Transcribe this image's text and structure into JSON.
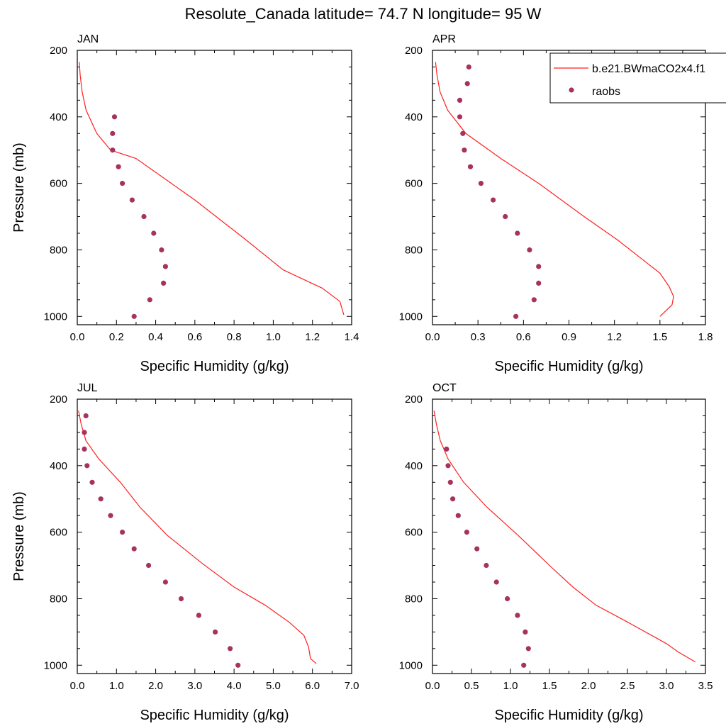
{
  "figure_title": "Resolute_Canada  latitude= 74.7 N longitude= 95 W",
  "colors": {
    "model_line": "#ff2020",
    "raobs_marker": "#a8325e",
    "axis": "#000000"
  },
  "legend": {
    "position": "top-right",
    "entries": [
      {
        "label": "b.e21.BWmaCO2x4.f1",
        "style": "line",
        "color": "#ff2020"
      },
      {
        "label": "raobs",
        "style": "marker",
        "color": "#a8325e"
      }
    ]
  },
  "chart_data": [
    {
      "type": "line",
      "panel": "JAN",
      "xlabel": "Specific Humidity (g/kg)",
      "ylabel": "Pressure (mb)",
      "xlim": [
        0,
        1.4
      ],
      "ylim": [
        1025,
        200
      ],
      "y_inverted": true,
      "xticks": [
        "0.0",
        "0.2",
        "0.4",
        "0.6",
        "0.8",
        "1.0",
        "1.2",
        "1.4"
      ],
      "yticks": [
        "200",
        "400",
        "600",
        "800",
        "1000"
      ],
      "series": [
        {
          "name": "b.e21.BWmaCO2x4.f1",
          "style": "line",
          "points": [
            [
              0.01,
              235
            ],
            [
              0.015,
              275
            ],
            [
              0.025,
              325
            ],
            [
              0.045,
              380
            ],
            [
              0.1,
              450
            ],
            [
              0.17,
              500
            ],
            [
              0.3,
              525
            ],
            [
              0.6,
              650
            ],
            [
              0.85,
              765
            ],
            [
              1.05,
              860
            ],
            [
              1.25,
              915
            ],
            [
              1.34,
              955
            ],
            [
              1.36,
              995
            ]
          ]
        },
        {
          "name": "raobs",
          "style": "marker",
          "points": [
            [
              0.19,
              400
            ],
            [
              0.18,
              450
            ],
            [
              0.18,
              500
            ],
            [
              0.21,
              550
            ],
            [
              0.23,
              600
            ],
            [
              0.28,
              650
            ],
            [
              0.34,
              700
            ],
            [
              0.39,
              750
            ],
            [
              0.43,
              800
            ],
            [
              0.45,
              850
            ],
            [
              0.44,
              900
            ],
            [
              0.37,
              950
            ],
            [
              0.29,
              1000
            ]
          ]
        }
      ]
    },
    {
      "type": "line",
      "panel": "APR",
      "xlabel": "Specific Humidity (g/kg)",
      "ylabel": "",
      "xlim": [
        0,
        1.8
      ],
      "ylim": [
        1025,
        200
      ],
      "y_inverted": true,
      "xticks": [
        "0.0",
        "0.3",
        "0.6",
        "0.9",
        "1.2",
        "1.5",
        "1.8"
      ],
      "yticks": [
        "200",
        "400",
        "600",
        "800",
        "1000"
      ],
      "series": [
        {
          "name": "b.e21.BWmaCO2x4.f1",
          "style": "line",
          "points": [
            [
              0.02,
              235
            ],
            [
              0.03,
              275
            ],
            [
              0.05,
              325
            ],
            [
              0.1,
              380
            ],
            [
              0.22,
              450
            ],
            [
              0.45,
              525
            ],
            [
              0.7,
              600
            ],
            [
              1.0,
              700
            ],
            [
              1.22,
              770
            ],
            [
              1.36,
              820
            ],
            [
              1.5,
              870
            ],
            [
              1.56,
              910
            ],
            [
              1.59,
              940
            ],
            [
              1.58,
              965
            ],
            [
              1.5,
              1000
            ]
          ]
        },
        {
          "name": "raobs",
          "style": "marker",
          "points": [
            [
              0.24,
              250
            ],
            [
              0.23,
              300
            ],
            [
              0.18,
              350
            ],
            [
              0.18,
              400
            ],
            [
              0.2,
              450
            ],
            [
              0.21,
              500
            ],
            [
              0.25,
              550
            ],
            [
              0.32,
              600
            ],
            [
              0.4,
              650
            ],
            [
              0.48,
              700
            ],
            [
              0.56,
              750
            ],
            [
              0.64,
              800
            ],
            [
              0.7,
              850
            ],
            [
              0.7,
              900
            ],
            [
              0.67,
              950
            ],
            [
              0.55,
              1000
            ]
          ]
        }
      ]
    },
    {
      "type": "line",
      "panel": "JUL",
      "xlabel": "Specific Humidity (g/kg)",
      "ylabel": "Pressure (mb)",
      "xlim": [
        0,
        7.0
      ],
      "ylim": [
        1025,
        200
      ],
      "y_inverted": true,
      "xticks": [
        "0.0",
        "1.0",
        "2.0",
        "3.0",
        "4.0",
        "5.0",
        "6.0",
        "7.0"
      ],
      "yticks": [
        "200",
        "400",
        "600",
        "800",
        "1000"
      ],
      "series": [
        {
          "name": "b.e21.BWmaCO2x4.f1",
          "style": "line",
          "points": [
            [
              0.03,
              235
            ],
            [
              0.1,
              275
            ],
            [
              0.22,
              325
            ],
            [
              0.55,
              380
            ],
            [
              1.1,
              450
            ],
            [
              1.6,
              525
            ],
            [
              2.3,
              610
            ],
            [
              3.2,
              695
            ],
            [
              4.0,
              765
            ],
            [
              4.8,
              820
            ],
            [
              5.4,
              870
            ],
            [
              5.78,
              910
            ],
            [
              5.9,
              945
            ],
            [
              5.95,
              980
            ],
            [
              6.1,
              995
            ]
          ]
        },
        {
          "name": "raobs",
          "style": "marker",
          "points": [
            [
              0.22,
              250
            ],
            [
              0.18,
              300
            ],
            [
              0.18,
              350
            ],
            [
              0.25,
              400
            ],
            [
              0.38,
              450
            ],
            [
              0.6,
              500
            ],
            [
              0.85,
              550
            ],
            [
              1.15,
              600
            ],
            [
              1.45,
              650
            ],
            [
              1.82,
              700
            ],
            [
              2.25,
              750
            ],
            [
              2.65,
              800
            ],
            [
              3.1,
              850
            ],
            [
              3.52,
              900
            ],
            [
              3.9,
              950
            ],
            [
              4.1,
              1000
            ]
          ]
        }
      ]
    },
    {
      "type": "line",
      "panel": "OCT",
      "xlabel": "Specific Humidity (g/kg)",
      "ylabel": "",
      "xlim": [
        0,
        3.5
      ],
      "ylim": [
        1025,
        200
      ],
      "y_inverted": true,
      "xticks": [
        "0.0",
        "0.5",
        "1.0",
        "1.5",
        "2.0",
        "2.5",
        "3.0",
        "3.5"
      ],
      "yticks": [
        "200",
        "400",
        "600",
        "800",
        "1000"
      ],
      "series": [
        {
          "name": "b.e21.BWmaCO2x4.f1",
          "style": "line",
          "points": [
            [
              0.02,
              235
            ],
            [
              0.05,
              275
            ],
            [
              0.1,
              325
            ],
            [
              0.2,
              380
            ],
            [
              0.4,
              450
            ],
            [
              0.7,
              525
            ],
            [
              1.1,
              610
            ],
            [
              1.5,
              700
            ],
            [
              1.8,
              765
            ],
            [
              2.1,
              820
            ],
            [
              2.5,
              870
            ],
            [
              3.0,
              935
            ],
            [
              3.15,
              960
            ],
            [
              3.37,
              990
            ]
          ]
        },
        {
          "name": "raobs",
          "style": "marker",
          "points": [
            [
              0.18,
              350
            ],
            [
              0.2,
              400
            ],
            [
              0.23,
              450
            ],
            [
              0.26,
              500
            ],
            [
              0.33,
              550
            ],
            [
              0.44,
              600
            ],
            [
              0.57,
              650
            ],
            [
              0.69,
              700
            ],
            [
              0.82,
              750
            ],
            [
              0.96,
              800
            ],
            [
              1.09,
              850
            ],
            [
              1.19,
              900
            ],
            [
              1.23,
              950
            ],
            [
              1.17,
              1000
            ]
          ]
        }
      ]
    }
  ]
}
